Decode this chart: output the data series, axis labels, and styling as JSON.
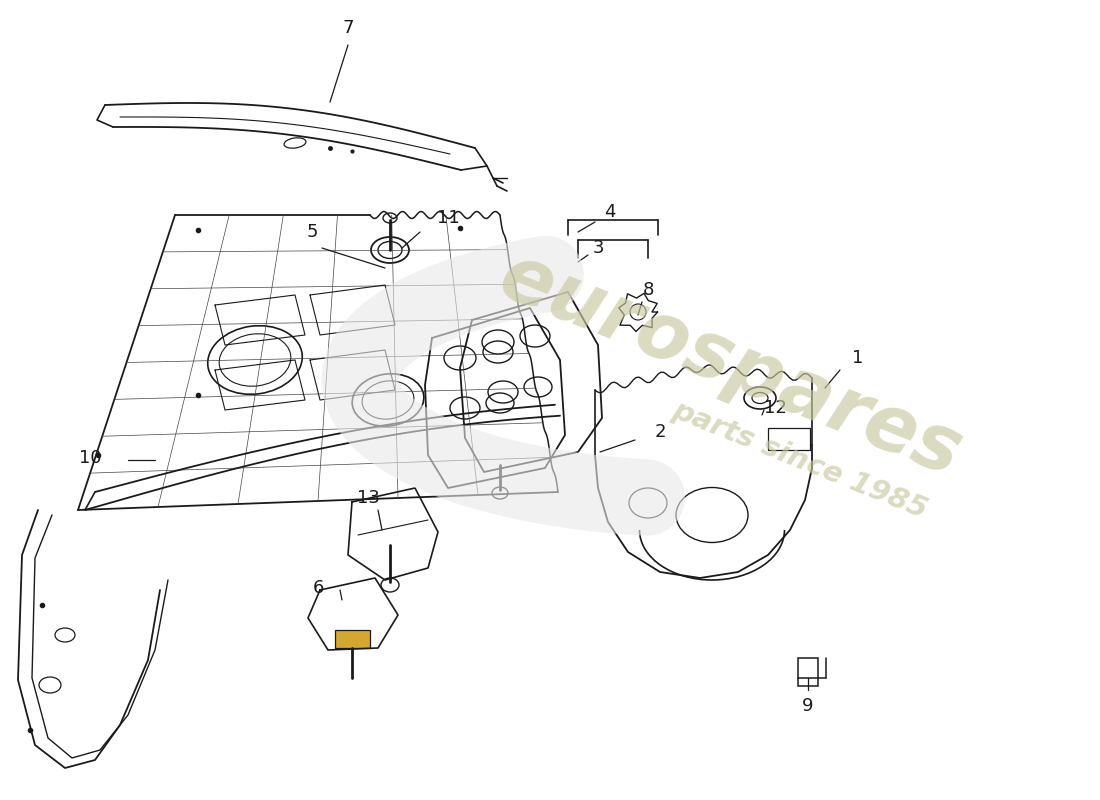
{
  "background_color": "#ffffff",
  "line_color": "#1a1a1a",
  "watermark_color": "#c8c8a0",
  "fig_w": 11.0,
  "fig_h": 8.0,
  "dpi": 100
}
